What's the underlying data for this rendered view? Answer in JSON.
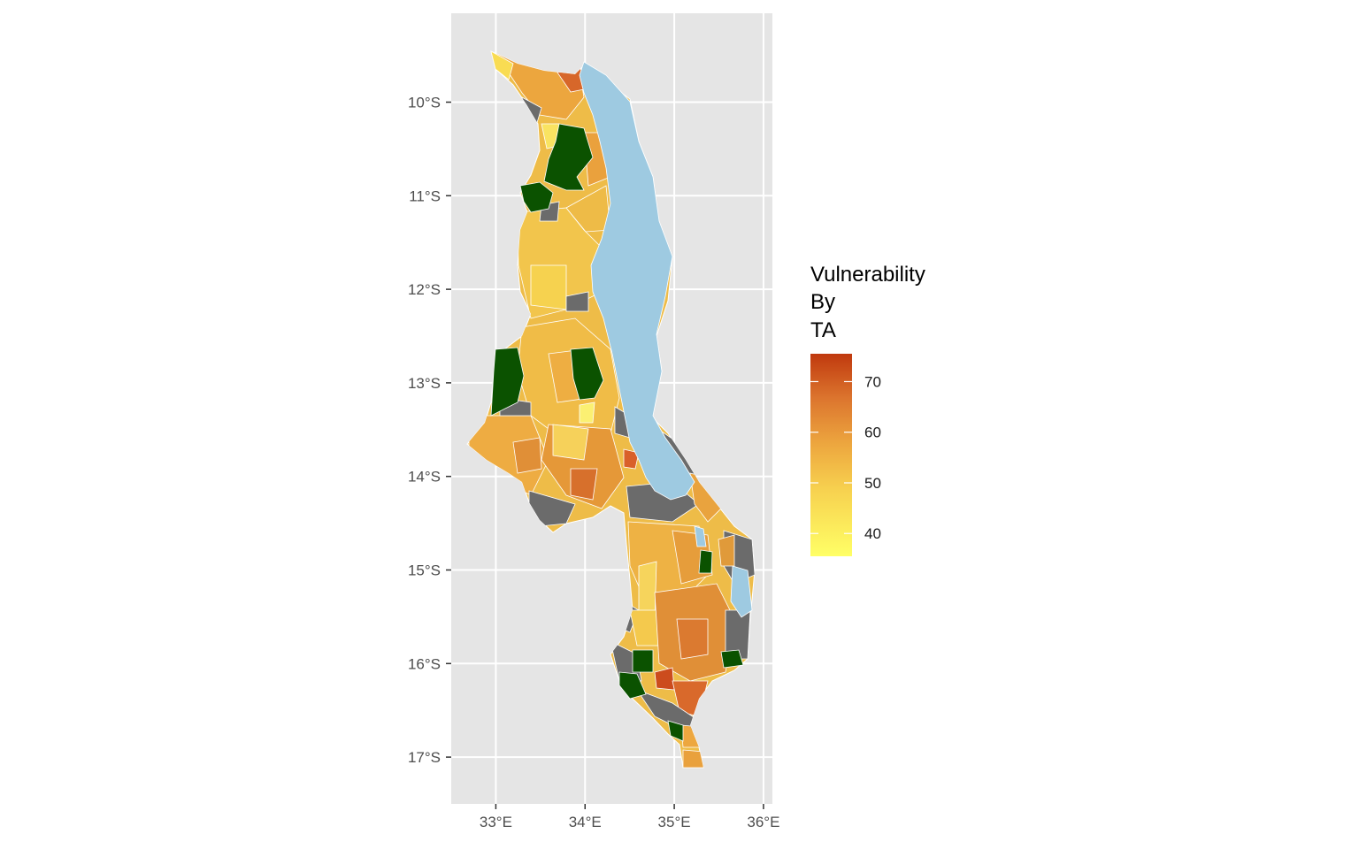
{
  "map": {
    "region": "Malawi",
    "x_axis": {
      "ticks": [
        "33°E",
        "34°E",
        "35°E",
        "36°E"
      ],
      "range": [
        32.5,
        36.1
      ]
    },
    "y_axis": {
      "ticks": [
        "10°S",
        "11°S",
        "12°S",
        "13°S",
        "14°S",
        "15°S",
        "16°S",
        "17°S"
      ],
      "range": [
        -17.5,
        -9.05
      ]
    },
    "grid": true,
    "panel_background": "#e5e5e5",
    "lake_color": "#9ecae1",
    "no_data_color": "#6b6b6b",
    "protected_area_color": "#0b5200",
    "legend": {
      "title_lines": [
        "Vulnerability",
        "By",
        "TA"
      ],
      "ticks": [
        "70",
        "60",
        "50",
        "40"
      ],
      "range": [
        35.5,
        75.5
      ],
      "tick_values": [
        70,
        60,
        50,
        40
      ],
      "colors": {
        "low": "#ffff66",
        "mid_low": "#f7d14f",
        "mid": "#eda73f",
        "mid_high": "#dc752e",
        "high": "#c0390e"
      }
    }
  },
  "chart_data": {
    "type": "choropleth",
    "fill_variable": "Vulnerability By TA",
    "scale_min": 35.5,
    "scale_max": 75.5
  }
}
